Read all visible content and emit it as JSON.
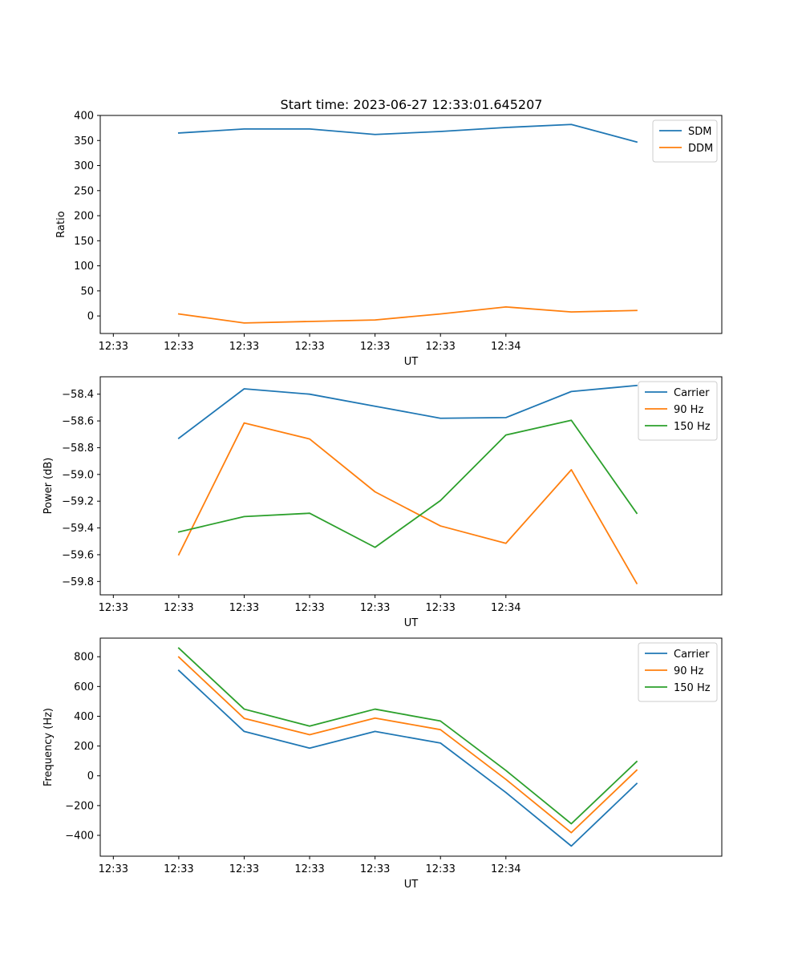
{
  "figure": {
    "title": "Start time: 2023-06-27 12:33:01.645207",
    "colors": {
      "blue": "#1f77b4",
      "orange": "#ff7f0e",
      "green": "#2ca02c"
    }
  },
  "chart_data": [
    {
      "type": "line",
      "xlabel": "UT",
      "ylabel": "Ratio",
      "x_ticks": [
        "12:33",
        "12:33",
        "12:33",
        "12:33",
        "12:33",
        "12:33",
        "12:34"
      ],
      "x_range": [
        -0.2,
        9.3
      ],
      "x": [
        1,
        2,
        3,
        4,
        5,
        6,
        7,
        8
      ],
      "ylim": [
        -35,
        400
      ],
      "y_ticks": [
        0,
        50,
        100,
        150,
        200,
        250,
        300,
        350,
        400
      ],
      "legend_position": "top-right",
      "series": [
        {
          "name": "SDM",
          "color": "#1f77b4",
          "values": [
            365,
            373,
            373,
            362,
            368,
            376,
            382,
            347
          ]
        },
        {
          "name": "DDM",
          "color": "#ff7f0e",
          "values": [
            4,
            -14,
            -11,
            -8,
            4,
            18,
            8,
            11
          ]
        }
      ]
    },
    {
      "type": "line",
      "xlabel": "UT",
      "ylabel": "Power (dB)",
      "x_ticks": [
        "12:33",
        "12:33",
        "12:33",
        "12:33",
        "12:33",
        "12:33",
        "12:34"
      ],
      "x_range": [
        -0.2,
        9.3
      ],
      "x": [
        1,
        2,
        3,
        4,
        5,
        6,
        7,
        8
      ],
      "ylim": [
        -59.9,
        -58.27
      ],
      "y_ticks": [
        -59.8,
        -59.6,
        -59.4,
        -59.2,
        -59.0,
        -58.8,
        -58.6,
        -58.4
      ],
      "y_tick_labels": [
        "−59.8",
        "−59.6",
        "−59.4",
        "−59.2",
        "−59.0",
        "−58.8",
        "−58.6",
        "−58.4"
      ],
      "legend_position": "top-right",
      "series": [
        {
          "name": "Carrier",
          "color": "#1f77b4",
          "values": [
            -58.73,
            -58.36,
            -58.4,
            -58.49,
            -58.58,
            -58.575,
            -58.38,
            -58.335
          ]
        },
        {
          "name": "90 Hz",
          "color": "#ff7f0e",
          "values": [
            -59.6,
            -58.615,
            -58.735,
            -59.13,
            -59.385,
            -59.515,
            -58.965,
            -59.815
          ]
        },
        {
          "name": "150 Hz",
          "color": "#2ca02c",
          "values": [
            -59.43,
            -59.315,
            -59.29,
            -59.545,
            -59.195,
            -58.705,
            -58.595,
            -59.29
          ]
        }
      ]
    },
    {
      "type": "line",
      "xlabel": "UT",
      "ylabel": "Frequency (Hz)",
      "x_ticks": [
        "12:33",
        "12:33",
        "12:33",
        "12:33",
        "12:33",
        "12:33",
        "12:34"
      ],
      "x_range": [
        -0.2,
        9.3
      ],
      "x": [
        1,
        2,
        3,
        4,
        5,
        6,
        7,
        8
      ],
      "ylim": [
        -540,
        925
      ],
      "y_ticks": [
        -400,
        -200,
        0,
        200,
        400,
        600,
        800
      ],
      "y_tick_labels": [
        "−400",
        "−200",
        "0",
        "200",
        "400",
        "600",
        "800"
      ],
      "legend_position": "top-right",
      "series": [
        {
          "name": "Carrier",
          "color": "#1f77b4",
          "values": [
            708,
            298,
            186,
            298,
            220,
            -112,
            -472,
            -52
          ]
        },
        {
          "name": "90 Hz",
          "color": "#ff7f0e",
          "values": [
            798,
            386,
            276,
            388,
            310,
            -24,
            -382,
            38
          ]
        },
        {
          "name": "150 Hz",
          "color": "#2ca02c",
          "values": [
            858,
            448,
            334,
            448,
            368,
            36,
            -322,
            96
          ]
        }
      ]
    }
  ]
}
